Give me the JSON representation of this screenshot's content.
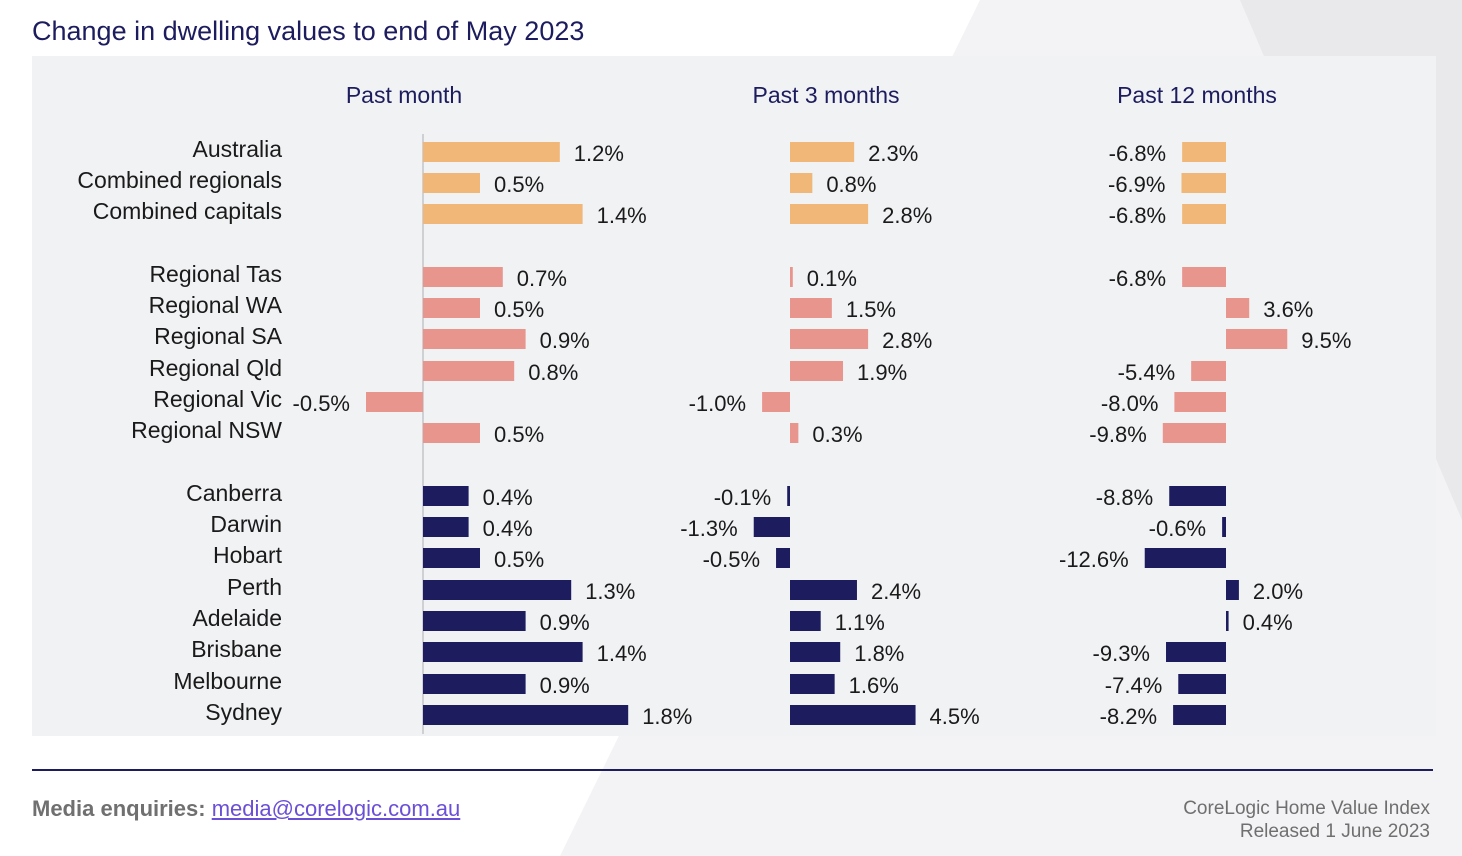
{
  "title": "Change in dwelling values to end of May 2023",
  "chart_data": {
    "type": "bar",
    "orientation": "horizontal",
    "title": "Change in dwelling values to end of May 2023",
    "unit": "%",
    "categories": [
      "Australia",
      "Combined regionals",
      "Combined capitals",
      "Regional Tas",
      "Regional WA",
      "Regional SA",
      "Regional Qld",
      "Regional Vic",
      "Regional NSW",
      "Canberra",
      "Darwin",
      "Hobart",
      "Perth",
      "Adelaide",
      "Brisbane",
      "Melbourne",
      "Sydney"
    ],
    "groups": [
      "national",
      "national",
      "national",
      "regional",
      "regional",
      "regional",
      "regional",
      "regional",
      "regional",
      "capital",
      "capital",
      "capital",
      "capital",
      "capital",
      "capital",
      "capital",
      "capital"
    ],
    "group_colors": {
      "national": "#f0b778",
      "regional": "#e8958e",
      "capital": "#1c1c5e"
    },
    "series": [
      {
        "name": "Past month",
        "values": [
          1.2,
          0.5,
          1.4,
          0.7,
          0.5,
          0.9,
          0.8,
          -0.5,
          0.5,
          0.4,
          0.4,
          0.5,
          1.3,
          0.9,
          1.4,
          0.9,
          1.8
        ]
      },
      {
        "name": "Past 3 months",
        "values": [
          2.3,
          0.8,
          2.8,
          0.1,
          1.5,
          2.8,
          1.9,
          -1.0,
          0.3,
          -0.1,
          -1.3,
          -0.5,
          2.4,
          1.1,
          1.8,
          1.6,
          4.5
        ]
      },
      {
        "name": "Past 12 months",
        "values": [
          -6.8,
          -6.9,
          -6.8,
          -6.8,
          3.6,
          9.5,
          -5.4,
          -8.0,
          -9.8,
          -8.8,
          -0.6,
          -12.6,
          2.0,
          0.4,
          -9.3,
          -7.4,
          -8.2
        ]
      }
    ]
  },
  "footer": {
    "media_label": "Media enquiries:",
    "media_email": "media@corelogic.com.au",
    "source_line1": "CoreLogic Home Value Index",
    "source_line2": "Released 1 June 2023"
  }
}
